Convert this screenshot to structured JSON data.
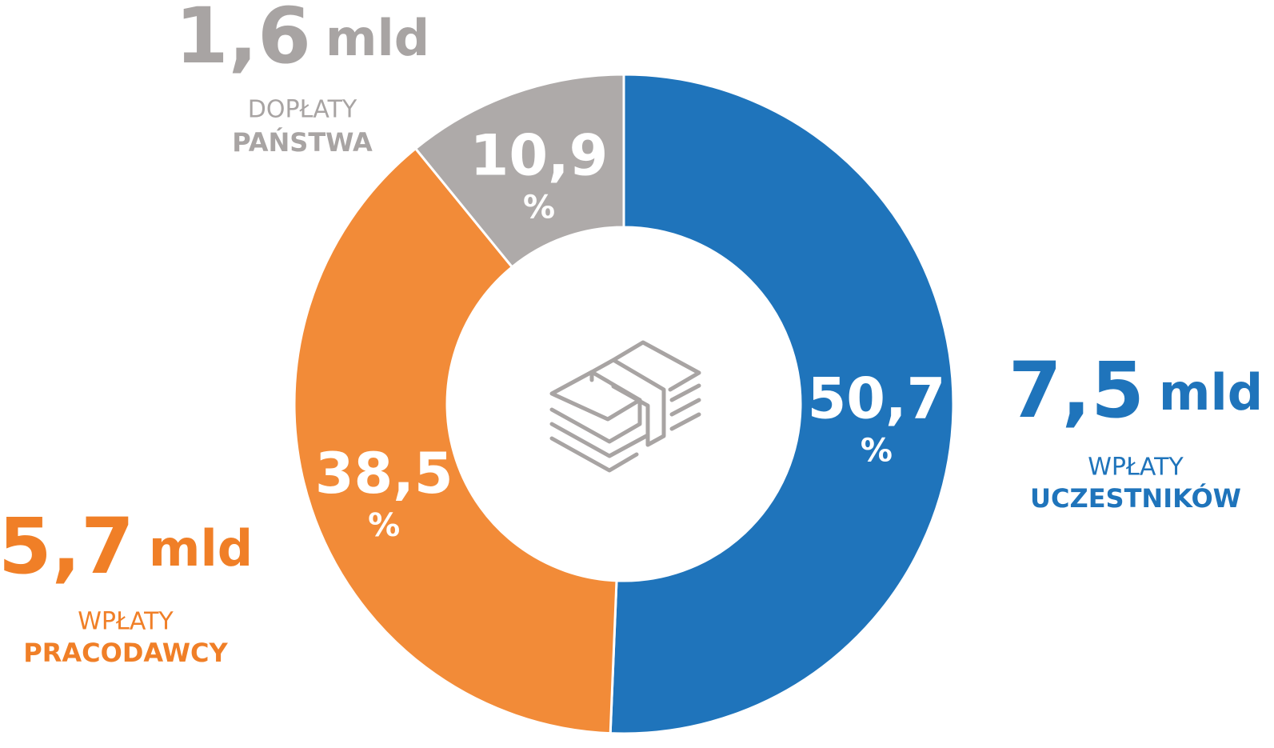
{
  "chart_data": {
    "type": "pie",
    "values": [
      50.7,
      38.5,
      10.9
    ],
    "value_labels": [
      "50,7",
      "38,5",
      "10,9"
    ],
    "unit": "%",
    "colors": [
      "#1f74bb",
      "#f28b38",
      "#aeaaa9"
    ],
    "text_colors": [
      "#1f74bb",
      "#f07f27",
      "#a8a4a3"
    ],
    "amounts": [
      {
        "value": 7.5,
        "label": "7,5"
      },
      {
        "value": 5.7,
        "label": "5,7"
      },
      {
        "value": 1.6,
        "label": "1,6"
      }
    ],
    "amount_unit": "mld",
    "captions": [
      [
        "WPŁATY",
        "UCZESTNIKÓW"
      ],
      [
        "WPŁATY",
        "PRACODAWCY"
      ],
      [
        "DOPŁATY",
        "PAŃSTWA"
      ]
    ]
  }
}
